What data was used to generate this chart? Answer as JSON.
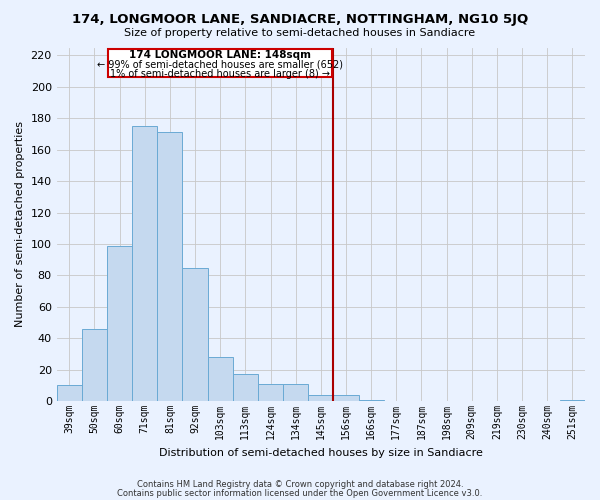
{
  "title": "174, LONGMOOR LANE, SANDIACRE, NOTTINGHAM, NG10 5JQ",
  "subtitle": "Size of property relative to semi-detached houses in Sandiacre",
  "xlabel": "Distribution of semi-detached houses by size in Sandiacre",
  "ylabel": "Number of semi-detached properties",
  "footnote1": "Contains HM Land Registry data © Crown copyright and database right 2024.",
  "footnote2": "Contains public sector information licensed under the Open Government Licence v3.0.",
  "categories": [
    "39sqm",
    "50sqm",
    "60sqm",
    "71sqm",
    "81sqm",
    "92sqm",
    "103sqm",
    "113sqm",
    "124sqm",
    "134sqm",
    "145sqm",
    "156sqm",
    "166sqm",
    "177sqm",
    "187sqm",
    "198sqm",
    "209sqm",
    "219sqm",
    "230sqm",
    "240sqm",
    "251sqm"
  ],
  "values": [
    10,
    46,
    99,
    175,
    171,
    85,
    28,
    17,
    11,
    11,
    4,
    4,
    1,
    0,
    0,
    0,
    0,
    0,
    0,
    0,
    1
  ],
  "bar_color": "#c5d9ef",
  "bar_edge_color": "#6aaad4",
  "grid_color": "#c8c8c8",
  "background_color": "#eaf2ff",
  "vline_color": "#aa0000",
  "annotation_title": "174 LONGMOOR LANE: 148sqm",
  "annotation_line1": "← 99% of semi-detached houses are smaller (652)",
  "annotation_line2": "1% of semi-detached houses are larger (8) →",
  "annotation_box_edge": "#cc0000",
  "ylim": [
    0,
    225
  ],
  "yticks": [
    0,
    20,
    40,
    60,
    80,
    100,
    120,
    140,
    160,
    180,
    200,
    220
  ]
}
